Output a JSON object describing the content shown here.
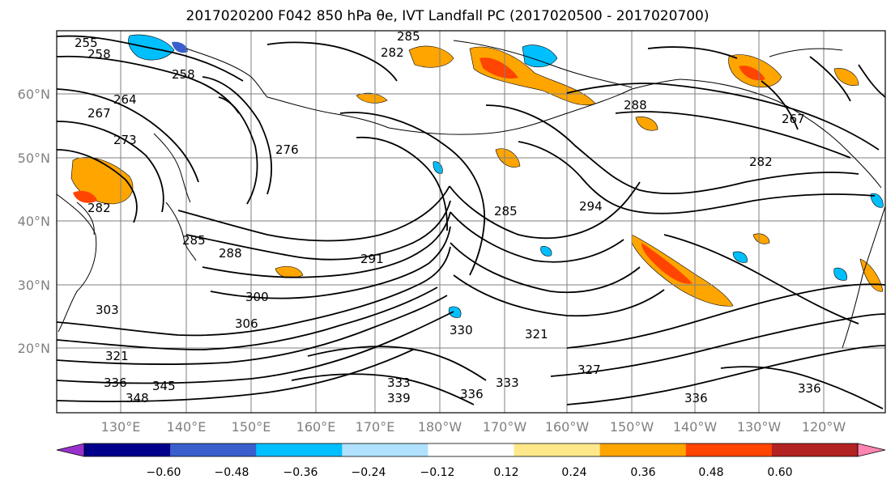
{
  "title": "2017020200 F042 850 hPa θe, IVT Landfall PC (2017020500 - 2017020700)",
  "lat_labels": [
    "60°N",
    "50°N",
    "40°N",
    "30°N",
    "20°N"
  ],
  "lon_labels": [
    "130°E",
    "140°E",
    "150°E",
    "160°E",
    "170°E",
    "180°W",
    "170°W",
    "160°W",
    "150°W",
    "140°W",
    "130°W",
    "120°W"
  ],
  "colorbar": {
    "ticks": [
      "−0.60",
      "−0.48",
      "−0.36",
      "−0.24",
      "−0.12",
      "0.12",
      "0.24",
      "0.36",
      "0.48",
      "0.60"
    ],
    "colors": [
      "#9932cc",
      "#00008b",
      "#3a5fcd",
      "#00bfff",
      "#b0e2ff",
      "#ffffff",
      "#ffe88a",
      "#ffa500",
      "#ff4500",
      "#b22222",
      "#ff85b0"
    ]
  },
  "contour_labels": [
    {
      "text": "255"
    },
    {
      "text": "258"
    },
    {
      "text": "258"
    },
    {
      "text": "264"
    },
    {
      "text": "267"
    },
    {
      "text": "273"
    },
    {
      "text": "276"
    },
    {
      "text": "285"
    },
    {
      "text": "282"
    },
    {
      "text": "282"
    },
    {
      "text": "285"
    },
    {
      "text": "288"
    },
    {
      "text": "291"
    },
    {
      "text": "294"
    },
    {
      "text": "285"
    },
    {
      "text": "288"
    },
    {
      "text": "267"
    },
    {
      "text": "282"
    },
    {
      "text": "300"
    },
    {
      "text": "306"
    },
    {
      "text": "303"
    },
    {
      "text": "321"
    },
    {
      "text": "336"
    },
    {
      "text": "348"
    },
    {
      "text": "345"
    },
    {
      "text": "333"
    },
    {
      "text": "339"
    },
    {
      "text": "330"
    },
    {
      "text": "321"
    },
    {
      "text": "327"
    },
    {
      "text": "333"
    },
    {
      "text": "336"
    },
    {
      "text": "336"
    },
    {
      "text": "336"
    }
  ]
}
